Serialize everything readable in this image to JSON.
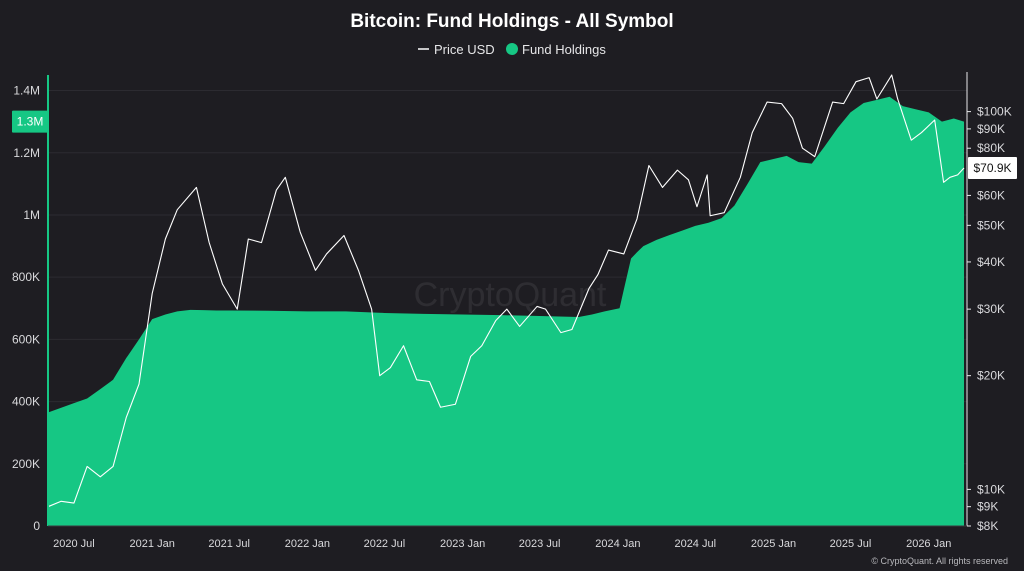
{
  "chart_data": {
    "type": "area",
    "title": "Bitcoin: Fund Holdings - All Symbol",
    "legend": {
      "placement": "top-center",
      "entries": [
        {
          "label": "Price USD",
          "marker": "line",
          "color": "#ffffff"
        },
        {
          "label": "Fund Holdings",
          "marker": "dot",
          "color": "#16c784"
        }
      ]
    },
    "x_axis": {
      "type": "date",
      "range": [
        "2020-05-01",
        "2026-04-01"
      ],
      "ticks": [
        {
          "date": "2020-07-01",
          "label": "2020 Jul"
        },
        {
          "date": "2021-01-01",
          "label": "2021 Jan"
        },
        {
          "date": "2021-07-01",
          "label": "2021 Jul"
        },
        {
          "date": "2022-01-01",
          "label": "2022 Jan"
        },
        {
          "date": "2022-07-01",
          "label": "2022 Jul"
        },
        {
          "date": "2023-01-01",
          "label": "2023 Jan"
        },
        {
          "date": "2023-07-01",
          "label": "2023 Jul"
        },
        {
          "date": "2024-01-01",
          "label": "2024 Jan"
        },
        {
          "date": "2024-07-01",
          "label": "2024 Jul"
        },
        {
          "date": "2025-01-01",
          "label": "2025 Jan"
        },
        {
          "date": "2025-07-01",
          "label": "2025 Jul"
        },
        {
          "date": "2026-01-01",
          "label": "2026 Jan"
        }
      ]
    },
    "y_left": {
      "name": "Fund Holdings",
      "scale": "linear",
      "range": [
        0,
        1450000
      ],
      "ticks": [
        {
          "value": 0,
          "label": "0"
        },
        {
          "value": 200000,
          "label": "200K"
        },
        {
          "value": 400000,
          "label": "400K"
        },
        {
          "value": 600000,
          "label": "600K"
        },
        {
          "value": 800000,
          "label": "800K"
        },
        {
          "value": 1000000,
          "label": "1M"
        },
        {
          "value": 1200000,
          "label": "1.2M"
        },
        {
          "value": 1400000,
          "label": "1.4M"
        }
      ],
      "current_value": {
        "value": 1300000,
        "label": "1.3M"
      }
    },
    "y_right": {
      "name": "Price USD",
      "scale": "log",
      "range": [
        8000,
        125000
      ],
      "ticks": [
        {
          "value": 8000,
          "label": "$8K"
        },
        {
          "value": 9000,
          "label": "$9K"
        },
        {
          "value": 10000,
          "label": "$10K"
        },
        {
          "value": 20000,
          "label": "$20K"
        },
        {
          "value": 30000,
          "label": "$30K"
        },
        {
          "value": 40000,
          "label": "$40K"
        },
        {
          "value": 50000,
          "label": "$50K"
        },
        {
          "value": 60000,
          "label": "$60K"
        },
        {
          "value": 80000,
          "label": "$80K"
        },
        {
          "value": 90000,
          "label": "$90K"
        },
        {
          "value": 100000,
          "label": "$100K"
        }
      ],
      "current_value": {
        "value": 70900,
        "label": "$70.9K"
      }
    },
    "grid": true,
    "series": [
      {
        "name": "Fund Holdings",
        "kind": "area",
        "axis": "left",
        "color": "#16c784",
        "points": [
          [
            "2020-05-01",
            365000
          ],
          [
            "2020-06-01",
            380000
          ],
          [
            "2020-07-01",
            395000
          ],
          [
            "2020-08-01",
            410000
          ],
          [
            "2020-09-01",
            440000
          ],
          [
            "2020-10-01",
            470000
          ],
          [
            "2020-11-01",
            540000
          ],
          [
            "2020-12-01",
            600000
          ],
          [
            "2021-01-01",
            665000
          ],
          [
            "2021-02-01",
            680000
          ],
          [
            "2021-03-01",
            690000
          ],
          [
            "2021-04-01",
            695000
          ],
          [
            "2021-05-01",
            694000
          ],
          [
            "2021-06-01",
            693000
          ],
          [
            "2021-07-01",
            693000
          ],
          [
            "2021-10-01",
            692000
          ],
          [
            "2022-01-01",
            690000
          ],
          [
            "2022-04-01",
            690000
          ],
          [
            "2022-07-01",
            685000
          ],
          [
            "2022-10-01",
            682000
          ],
          [
            "2023-01-01",
            680000
          ],
          [
            "2023-04-01",
            678000
          ],
          [
            "2023-07-01",
            675000
          ],
          [
            "2023-10-01",
            672000
          ],
          [
            "2023-11-01",
            680000
          ],
          [
            "2023-12-01",
            690000
          ],
          [
            "2024-01-05",
            700000
          ],
          [
            "2024-01-15",
            760000
          ],
          [
            "2024-02-01",
            860000
          ],
          [
            "2024-02-15",
            880000
          ],
          [
            "2024-03-01",
            900000
          ],
          [
            "2024-04-01",
            920000
          ],
          [
            "2024-05-01",
            935000
          ],
          [
            "2024-06-01",
            950000
          ],
          [
            "2024-07-01",
            965000
          ],
          [
            "2024-08-01",
            975000
          ],
          [
            "2024-09-01",
            990000
          ],
          [
            "2024-10-01",
            1030000
          ],
          [
            "2024-11-01",
            1100000
          ],
          [
            "2024-12-01",
            1170000
          ],
          [
            "2025-01-01",
            1180000
          ],
          [
            "2025-02-01",
            1190000
          ],
          [
            "2025-03-01",
            1170000
          ],
          [
            "2025-04-01",
            1165000
          ],
          [
            "2025-05-01",
            1220000
          ],
          [
            "2025-06-01",
            1280000
          ],
          [
            "2025-07-01",
            1330000
          ],
          [
            "2025-08-01",
            1360000
          ],
          [
            "2025-09-01",
            1370000
          ],
          [
            "2025-10-01",
            1380000
          ],
          [
            "2025-11-01",
            1350000
          ],
          [
            "2025-12-01",
            1340000
          ],
          [
            "2026-01-01",
            1330000
          ],
          [
            "2026-02-01",
            1300000
          ],
          [
            "2026-03-01",
            1310000
          ],
          [
            "2026-03-25",
            1300000
          ]
        ]
      },
      {
        "name": "Price USD",
        "kind": "line",
        "axis": "right",
        "color": "#ffffff",
        "points": [
          [
            "2020-05-01",
            9000
          ],
          [
            "2020-06-01",
            9300
          ],
          [
            "2020-07-01",
            9200
          ],
          [
            "2020-08-01",
            11500
          ],
          [
            "2020-09-01",
            10800
          ],
          [
            "2020-10-01",
            11500
          ],
          [
            "2020-11-01",
            15500
          ],
          [
            "2020-12-01",
            19000
          ],
          [
            "2021-01-01",
            33000
          ],
          [
            "2021-02-01",
            46000
          ],
          [
            "2021-03-01",
            55000
          ],
          [
            "2021-04-15",
            63000
          ],
          [
            "2021-05-15",
            45000
          ],
          [
            "2021-06-15",
            35000
          ],
          [
            "2021-07-20",
            30000
          ],
          [
            "2021-08-15",
            46000
          ],
          [
            "2021-09-15",
            45000
          ],
          [
            "2021-10-20",
            62000
          ],
          [
            "2021-11-10",
            67000
          ],
          [
            "2021-12-15",
            48000
          ],
          [
            "2022-01-20",
            38000
          ],
          [
            "2022-02-15",
            42000
          ],
          [
            "2022-03-28",
            47000
          ],
          [
            "2022-05-01",
            38000
          ],
          [
            "2022-06-01",
            30000
          ],
          [
            "2022-06-20",
            20000
          ],
          [
            "2022-07-15",
            21000
          ],
          [
            "2022-08-15",
            24000
          ],
          [
            "2022-09-15",
            19500
          ],
          [
            "2022-10-15",
            19300
          ],
          [
            "2022-11-10",
            16500
          ],
          [
            "2022-12-15",
            16800
          ],
          [
            "2023-01-20",
            22500
          ],
          [
            "2023-02-15",
            24000
          ],
          [
            "2023-03-20",
            28000
          ],
          [
            "2023-04-15",
            30000
          ],
          [
            "2023-05-15",
            27000
          ],
          [
            "2023-06-25",
            30500
          ],
          [
            "2023-07-15",
            30000
          ],
          [
            "2023-08-20",
            26000
          ],
          [
            "2023-09-15",
            26500
          ],
          [
            "2023-10-25",
            34000
          ],
          [
            "2023-11-15",
            37000
          ],
          [
            "2023-12-10",
            43000
          ],
          [
            "2024-01-15",
            42000
          ],
          [
            "2024-02-15",
            52000
          ],
          [
            "2024-03-14",
            72000
          ],
          [
            "2024-04-15",
            63000
          ],
          [
            "2024-05-20",
            70000
          ],
          [
            "2024-06-15",
            66000
          ],
          [
            "2024-07-05",
            56000
          ],
          [
            "2024-07-29",
            68000
          ],
          [
            "2024-08-05",
            53000
          ],
          [
            "2024-09-07",
            54000
          ],
          [
            "2024-10-15",
            67000
          ],
          [
            "2024-11-12",
            88000
          ],
          [
            "2024-12-17",
            106000
          ],
          [
            "2025-01-20",
            105000
          ],
          [
            "2025-02-15",
            96000
          ],
          [
            "2025-03-10",
            80000
          ],
          [
            "2025-04-08",
            76000
          ],
          [
            "2025-05-20",
            106000
          ],
          [
            "2025-06-15",
            105000
          ],
          [
            "2025-07-14",
            120000
          ],
          [
            "2025-08-14",
            123000
          ],
          [
            "2025-09-01",
            108000
          ],
          [
            "2025-10-06",
            125000
          ],
          [
            "2025-10-20",
            108000
          ],
          [
            "2025-11-21",
            84000
          ],
          [
            "2025-12-15",
            88000
          ],
          [
            "2026-01-15",
            95000
          ],
          [
            "2026-02-05",
            65000
          ],
          [
            "2026-02-20",
            67000
          ],
          [
            "2026-03-10",
            68000
          ],
          [
            "2026-03-25",
            70900
          ]
        ]
      }
    ],
    "watermark": "CryptoQuant",
    "copyright": "© CryptoQuant. All rights reserved"
  }
}
